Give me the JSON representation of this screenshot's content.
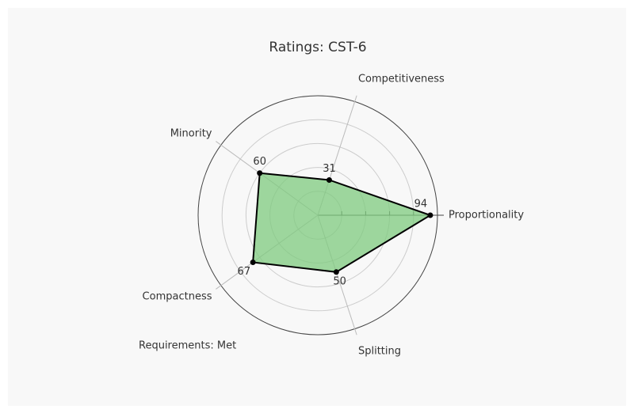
{
  "chart_data": {
    "type": "radar",
    "title": "Ratings: CST-6",
    "categories": [
      "Proportionality",
      "Competitiveness",
      "Minority",
      "Compactness",
      "Splitting"
    ],
    "values": [
      94,
      31,
      60,
      67,
      50
    ],
    "color": "#7fcb7f",
    "rlim": [
      0,
      100
    ],
    "rticks": [
      20,
      40,
      60,
      80
    ],
    "grid": true,
    "annotation": "Requirements: Met"
  }
}
